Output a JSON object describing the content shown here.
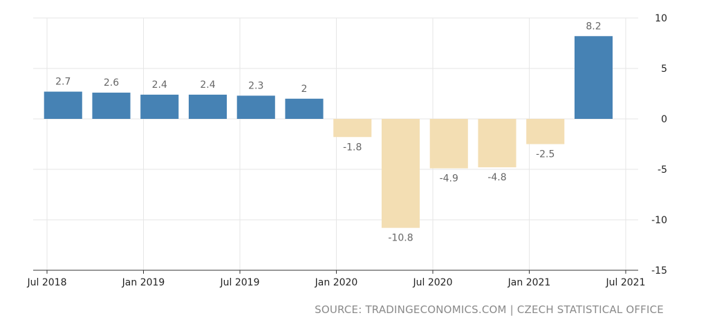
{
  "chart_data": {
    "type": "bar",
    "x": [
      "2018-Q3",
      "2018-Q4",
      "2019-Q1",
      "2019-Q2",
      "2019-Q3",
      "2019-Q4",
      "2020-Q1",
      "2020-Q2",
      "2020-Q3",
      "2020-Q4",
      "2021-Q1",
      "2021-Q2"
    ],
    "values": [
      2.7,
      2.6,
      2.4,
      2.4,
      2.3,
      2,
      -1.8,
      -10.8,
      -4.9,
      -4.8,
      -2.5,
      8.2
    ],
    "value_labels": [
      "2.7",
      "2.6",
      "2.4",
      "2.4",
      "2.3",
      "2",
      "-1.8",
      "-10.8",
      "-4.9",
      "-4.8",
      "-2.5",
      "8.2"
    ],
    "x_ticks": [
      {
        "month": "2018-07",
        "label": "Jul 2018"
      },
      {
        "month": "2019-01",
        "label": "Jan 2019"
      },
      {
        "month": "2019-07",
        "label": "Jul 2019"
      },
      {
        "month": "2020-01",
        "label": "Jan 2020"
      },
      {
        "month": "2020-07",
        "label": "Jul 2020"
      },
      {
        "month": "2021-01",
        "label": "Jan 2021"
      },
      {
        "month": "2021-07",
        "label": "Jul 2021"
      }
    ],
    "y_ticks": [
      10,
      5,
      0,
      -5,
      -10,
      -15
    ],
    "ylim": [
      -15,
      10
    ],
    "y_axis_position": "right",
    "grid": true,
    "colors": {
      "positive": "#4682b4",
      "negative": "#f3deb3",
      "grid": "#e6e6e6",
      "axis": "#333333"
    }
  },
  "source": "SOURCE: TRADINGECONOMICS.COM | CZECH STATISTICAL OFFICE"
}
